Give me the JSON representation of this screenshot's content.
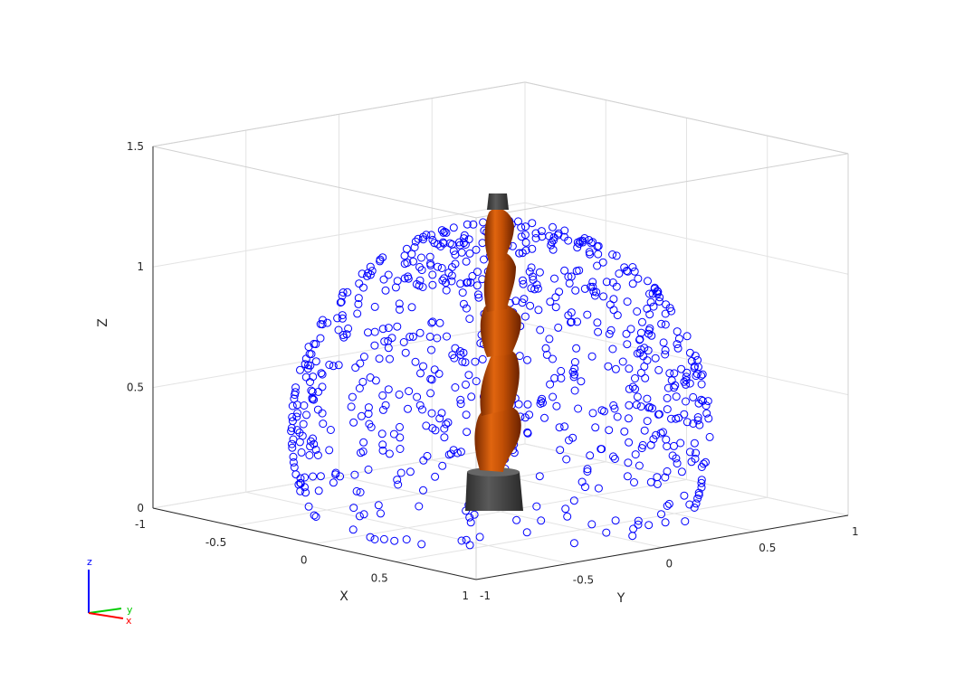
{
  "chart_data": {
    "type": "scatter",
    "projection": "3d",
    "title": "",
    "xlabel": "X",
    "ylabel": "Y",
    "zlabel": "Z",
    "xlim": [
      -1,
      1
    ],
    "ylim": [
      -1,
      1
    ],
    "zlim": [
      0,
      1.5
    ],
    "x_ticks": [
      "-1",
      "-0.5",
      "0",
      "0.5",
      "1"
    ],
    "y_ticks": [
      "-1",
      "-0.5",
      "0",
      "0.5",
      "1"
    ],
    "z_ticks": [
      "0",
      "0.5",
      "1",
      "1.5"
    ],
    "grid": true,
    "marker": "open-circle",
    "marker_color": "#0000ff",
    "workspace_shape": "hemisphere",
    "workspace_center": [
      0,
      0,
      0.34
    ],
    "workspace_radius": 0.85,
    "num_points": 1100,
    "robot": {
      "shown": true,
      "base_color": "#404040",
      "link_color": "#cc5500",
      "pose": "vertical"
    },
    "triad": {
      "labels": [
        "z",
        "y",
        "x"
      ],
      "colors": [
        "#0000ff",
        "#00cc00",
        "#ff0000"
      ]
    }
  }
}
